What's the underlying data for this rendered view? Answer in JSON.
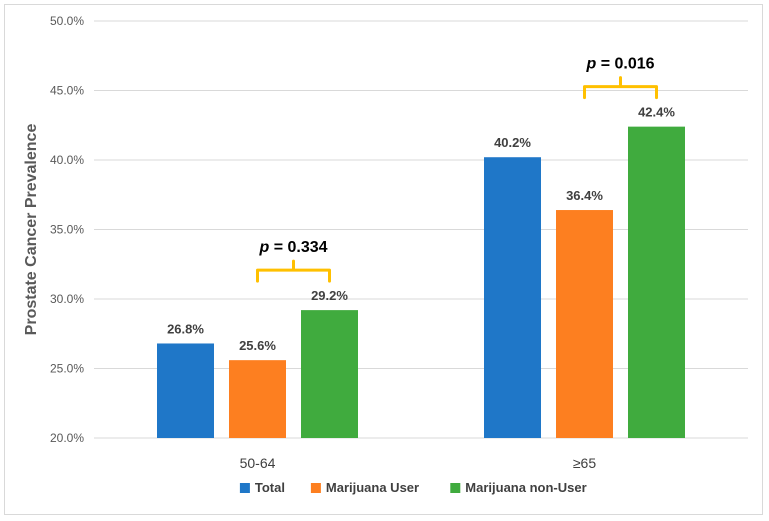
{
  "chart_data": {
    "type": "bar",
    "ylabel": "Prostate Cancer Prevalence",
    "ylim": [
      20.0,
      50.0
    ],
    "yticks": [
      "20.0%",
      "25.0%",
      "30.0%",
      "35.0%",
      "40.0%",
      "45.0%",
      "50.0%"
    ],
    "ytick_values": [
      20,
      25,
      30,
      35,
      40,
      45,
      50
    ],
    "grid": true,
    "legend_position": "bottom",
    "categories": [
      "50-64",
      "≥65"
    ],
    "series": [
      {
        "name": "Total",
        "color": "#1f77c8",
        "values": [
          26.8,
          40.2
        ],
        "labels": [
          "26.8%",
          "40.2%"
        ]
      },
      {
        "name": "Marijuana User",
        "color": "#fd7f20",
        "values": [
          25.6,
          36.4
        ],
        "labels": [
          "25.6%",
          "36.4%"
        ]
      },
      {
        "name": "Marijuana non-User",
        "color": "#40ab3e",
        "values": [
          29.2,
          42.4
        ],
        "labels": [
          "29.2%",
          "42.4%"
        ]
      }
    ],
    "annotations": [
      {
        "category": "50-64",
        "between": [
          "Marijuana User",
          "Marijuana non-User"
        ],
        "p_symbol": "p",
        "p_text": " = 0.334"
      },
      {
        "category": "≥65",
        "between": [
          "Marijuana User",
          "Marijuana non-User"
        ],
        "p_symbol": "p",
        "p_text": " = 0.016"
      }
    ],
    "bracket_color": "#ffc000"
  }
}
